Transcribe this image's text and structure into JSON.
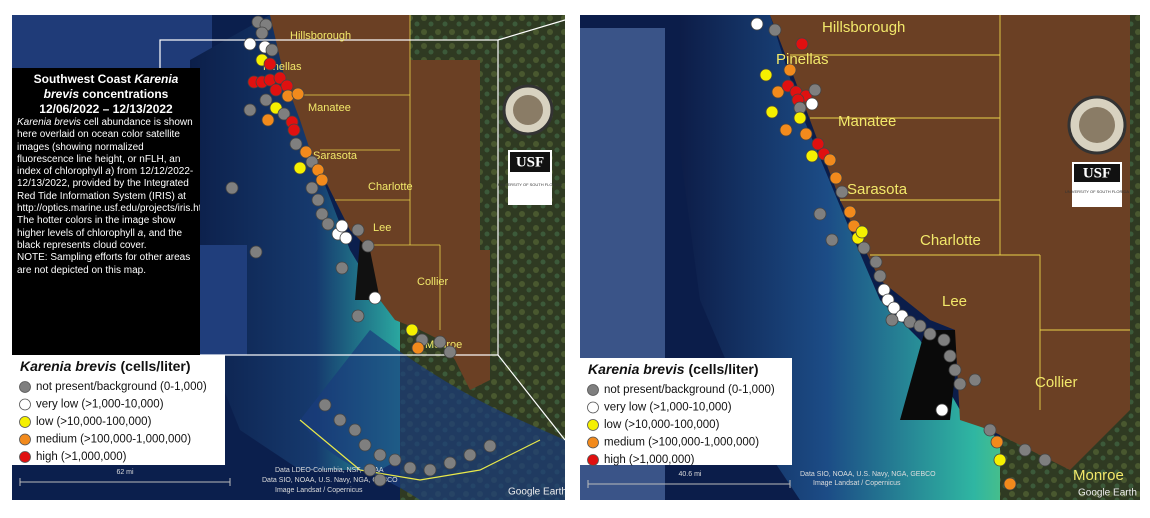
{
  "info": {
    "title_prefix": "Southwest Coast",
    "title_species": "Karenia brevis",
    "title_suffix": "concentrations",
    "date_range": "12/06/2022 – 12/13/2022",
    "description": [
      "Karenia brevis",
      " cell abundance is shown here overlaid on ocean color satellite images (showing normalized fluorescence line height, or nFLH, an index of chlorophyll ",
      "a",
      ") from 12/12/2022-12/13/2022, provided by the Integrated Red Tide Information System (IRIS) at http://optics.marine.usf.edu/projects/iris.html. The hotter colors in the image show higher levels of chlorophyll ",
      "a",
      ", and the black represents cloud cover."
    ],
    "note": "NOTE: Sampling efforts for other areas are not depicted on this map."
  },
  "legend": {
    "title_species": "Karenia brevis",
    "title_unit": "(cells/liter)",
    "items": [
      {
        "label": "not present/background (0-1,000)",
        "color": "#7f7f7f"
      },
      {
        "label": "very low (>1,000-10,000)",
        "color": "#ffffff"
      },
      {
        "label": "low (>10,000-100,000)",
        "color": "#f5f000"
      },
      {
        "label": "medium (>100,000-1,000,000)",
        "color": "#f28a1c"
      },
      {
        "label": "high (>1,000,000)",
        "color": "#e01010"
      }
    ]
  },
  "left_map": {
    "counties": [
      "Hillsborough",
      "Pinellas",
      "Manatee",
      "Sarasota",
      "Charlotte",
      "Lee",
      "Collier",
      "Monroe"
    ],
    "scale": "62 mi",
    "credits": [
      "Data LDEO-Columbia, NSF, NOAA",
      "Data SIO, NOAA, U.S. Navy, NGA, GEBCO",
      "Image Landsat / Copernicus"
    ]
  },
  "right_map": {
    "counties": [
      "Hillsborough",
      "Pinellas",
      "Manatee",
      "Sarasota",
      "Charlotte",
      "Lee",
      "Collier",
      "Monroe"
    ],
    "scale": "40.6 mi",
    "credits": [
      "Data SIO, NOAA, U.S. Navy, NGA, GEBCO",
      "Image Landsat / Copernicus"
    ]
  },
  "logo": {
    "name": "USF",
    "subtitle": "UNIVERSITY OF SOUTH FLORIDA"
  },
  "watermark": "Google Earth"
}
